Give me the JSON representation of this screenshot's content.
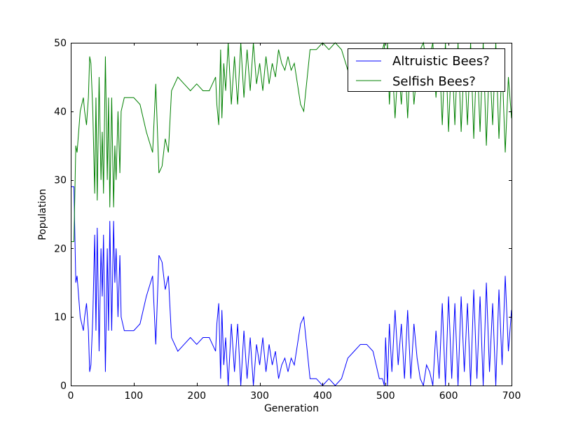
{
  "chart_data": {
    "type": "line",
    "title": "",
    "xlabel": "Generation",
    "ylabel": "Population",
    "xlim": [
      0,
      700
    ],
    "ylim": [
      0,
      50
    ],
    "x_ticks": [
      0,
      100,
      200,
      300,
      400,
      500,
      600,
      700
    ],
    "y_ticks": [
      0,
      10,
      20,
      30,
      40,
      50
    ],
    "x_tick_labels": [
      "0",
      "100",
      "200",
      "300",
      "400",
      "500",
      "600",
      "700"
    ],
    "y_tick_labels": [
      "0",
      "10",
      "20",
      "30",
      "40",
      "50"
    ],
    "grid": false,
    "legend_position": "top-right",
    "series": [
      {
        "name": "Altruistic Bees?",
        "color": "#0000ff",
        "x": [
          0,
          5,
          8,
          10,
          15,
          20,
          22,
          25,
          28,
          30,
          32,
          35,
          38,
          40,
          42,
          45,
          48,
          50,
          52,
          55,
          58,
          60,
          62,
          65,
          68,
          70,
          72,
          75,
          78,
          80,
          85,
          90,
          95,
          100,
          110,
          120,
          130,
          135,
          140,
          145,
          150,
          155,
          160,
          165,
          170,
          180,
          190,
          200,
          210,
          220,
          230,
          232,
          235,
          238,
          240,
          243,
          246,
          250,
          255,
          260,
          265,
          270,
          275,
          280,
          285,
          290,
          295,
          300,
          305,
          310,
          315,
          320,
          325,
          330,
          335,
          340,
          345,
          350,
          355,
          360,
          365,
          370,
          380,
          390,
          400,
          410,
          420,
          430,
          440,
          450,
          460,
          470,
          480,
          490,
          495,
          498,
          500,
          503,
          506,
          510,
          515,
          520,
          525,
          530,
          535,
          540,
          545,
          550,
          555,
          560,
          565,
          570,
          575,
          580,
          585,
          590,
          595,
          600,
          605,
          610,
          615,
          620,
          625,
          630,
          635,
          640,
          645,
          650,
          655,
          660,
          665,
          670,
          675,
          680,
          685,
          690,
          695,
          700
        ],
        "values": [
          29,
          29,
          15,
          16,
          10,
          8,
          10,
          12,
          8,
          2,
          3,
          10,
          22,
          8,
          23,
          5,
          20,
          13,
          22,
          2,
          20,
          8,
          24,
          8,
          24,
          15,
          20,
          10,
          19,
          10,
          8,
          8,
          8,
          8,
          9,
          13,
          16,
          6,
          19,
          18,
          14,
          16,
          7,
          6,
          5,
          6,
          7,
          6,
          7,
          7,
          5,
          9,
          12,
          1,
          11,
          3,
          7,
          0,
          9,
          2,
          9,
          0,
          8,
          1,
          7,
          0,
          6,
          3,
          7,
          2,
          6,
          3,
          5,
          1,
          3,
          4,
          2,
          4,
          3,
          6,
          9,
          10,
          1,
          1,
          0,
          1,
          0,
          1,
          4,
          5,
          6,
          6,
          5,
          1,
          1,
          0,
          7,
          0,
          9,
          2,
          11,
          3,
          9,
          1,
          11,
          1,
          9,
          4,
          1,
          0,
          3,
          2,
          0,
          8,
          1,
          12,
          0,
          13,
          1,
          12,
          0,
          13,
          2,
          12,
          0,
          14,
          1,
          13,
          0,
          15,
          2,
          12,
          0,
          14,
          3,
          16,
          5,
          11
        ]
      },
      {
        "name": "Selfish Bees?",
        "color": "#008000",
        "x": [
          0,
          5,
          8,
          10,
          15,
          20,
          22,
          25,
          28,
          30,
          32,
          35,
          38,
          40,
          42,
          45,
          48,
          50,
          52,
          55,
          58,
          60,
          62,
          65,
          68,
          70,
          72,
          75,
          78,
          80,
          85,
          90,
          95,
          100,
          110,
          120,
          130,
          135,
          140,
          145,
          150,
          155,
          160,
          165,
          170,
          180,
          190,
          200,
          210,
          220,
          230,
          232,
          235,
          238,
          240,
          243,
          246,
          250,
          255,
          260,
          265,
          270,
          275,
          280,
          285,
          290,
          295,
          300,
          305,
          310,
          315,
          320,
          325,
          330,
          335,
          340,
          345,
          350,
          355,
          360,
          365,
          370,
          380,
          390,
          400,
          410,
          420,
          430,
          440,
          450,
          460,
          470,
          480,
          490,
          495,
          498,
          500,
          503,
          506,
          510,
          515,
          520,
          525,
          530,
          535,
          540,
          545,
          550,
          555,
          560,
          565,
          570,
          575,
          580,
          585,
          590,
          595,
          600,
          605,
          610,
          615,
          620,
          625,
          630,
          635,
          640,
          645,
          650,
          655,
          660,
          665,
          670,
          675,
          680,
          685,
          690,
          695,
          700
        ],
        "values": [
          21,
          21,
          35,
          34,
          40,
          42,
          40,
          38,
          42,
          48,
          47,
          40,
          28,
          42,
          27,
          45,
          30,
          37,
          28,
          48,
          30,
          42,
          26,
          42,
          26,
          35,
          30,
          40,
          31,
          40,
          42,
          42,
          42,
          42,
          41,
          37,
          34,
          44,
          31,
          32,
          36,
          34,
          43,
          44,
          45,
          44,
          43,
          44,
          43,
          43,
          45,
          41,
          38,
          49,
          39,
          47,
          43,
          50,
          41,
          48,
          41,
          50,
          42,
          49,
          43,
          50,
          44,
          47,
          43,
          48,
          44,
          47,
          45,
          49,
          47,
          46,
          48,
          46,
          47,
          44,
          41,
          40,
          49,
          49,
          50,
          49,
          50,
          49,
          46,
          45,
          44,
          44,
          45,
          49,
          49,
          50,
          43,
          50,
          41,
          48,
          39,
          47,
          41,
          49,
          39,
          49,
          41,
          46,
          49,
          50,
          47,
          48,
          50,
          42,
          49,
          38,
          50,
          37,
          49,
          38,
          50,
          37,
          48,
          38,
          50,
          36,
          49,
          37,
          50,
          35,
          48,
          38,
          50,
          36,
          47,
          34,
          45,
          39
        ]
      }
    ]
  }
}
